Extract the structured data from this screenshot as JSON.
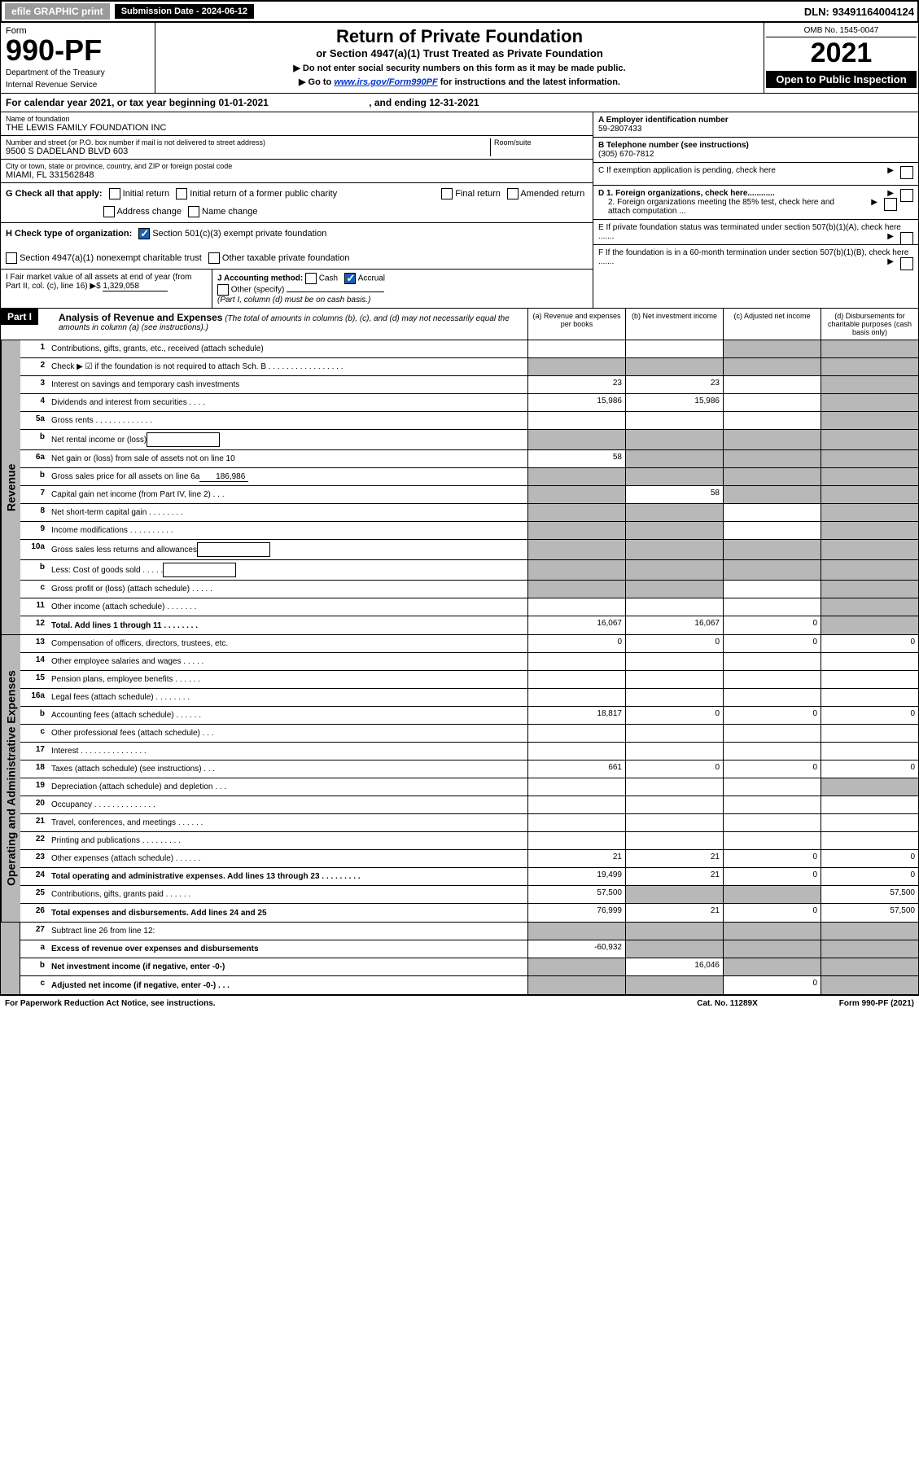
{
  "top": {
    "efile": "efile GRAPHIC print",
    "sub_label": "Submission Date - 2024-06-12",
    "dln": "DLN: 93491164004124"
  },
  "header": {
    "form_word": "Form",
    "form_num": "990-PF",
    "dept1": "Department of the Treasury",
    "dept2": "Internal Revenue Service",
    "title": "Return of Private Foundation",
    "subtitle": "or Section 4947(a)(1) Trust Treated as Private Foundation",
    "note1": "▶ Do not enter social security numbers on this form as it may be made public.",
    "note2_pre": "▶ Go to ",
    "note2_link": "www.irs.gov/Form990PF",
    "note2_post": " for instructions and the latest information.",
    "omb": "OMB No. 1545-0047",
    "year": "2021",
    "open": "Open to Public Inspection"
  },
  "cal": {
    "text_pre": "For calendar year 2021, or tax year beginning ",
    "begin": "01-01-2021",
    "text_mid": " , and ending ",
    "end": "12-31-2021"
  },
  "info": {
    "name_label": "Name of foundation",
    "name": "THE LEWIS FAMILY FOUNDATION INC",
    "addr_label": "Number and street (or P.O. box number if mail is not delivered to street address)",
    "addr": "9500 S DADELAND BLVD 603",
    "room_label": "Room/suite",
    "city_label": "City or town, state or province, country, and ZIP or foreign postal code",
    "city": "MIAMI, FL  331562848",
    "A_label": "A Employer identification number",
    "A_val": "59-2807433",
    "B_label": "B Telephone number (see instructions)",
    "B_val": "(305) 670-7812",
    "C_label": "C If exemption application is pending, check here",
    "D1_label": "D 1. Foreign organizations, check here............",
    "D2_label": "2. Foreign organizations meeting the 85% test, check here and attach computation ...",
    "E_label": "E If private foundation status was terminated under section 507(b)(1)(A), check here .......",
    "F_label": "F If the foundation is in a 60-month termination under section 507(b)(1)(B), check here .......",
    "G_label": "G Check all that apply:",
    "G_opts": [
      "Initial return",
      "Initial return of a former public charity",
      "Final return",
      "Amended return",
      "Address change",
      "Name change"
    ],
    "H_label": "H Check type of organization:",
    "H1": "Section 501(c)(3) exempt private foundation",
    "H2": "Section 4947(a)(1) nonexempt charitable trust",
    "H3": "Other taxable private foundation",
    "I_label": "I Fair market value of all assets at end of year (from Part II, col. (c), line 16)",
    "I_val": "1,329,058",
    "J_label": "J Accounting method:",
    "J_cash": "Cash",
    "J_accrual": "Accrual",
    "J_other": "Other (specify)",
    "J_note": "(Part I, column (d) must be on cash basis.)"
  },
  "part1": {
    "label": "Part I",
    "title": "Analysis of Revenue and Expenses",
    "title_note": "(The total of amounts in columns (b), (c), and (d) may not necessarily equal the amounts in column (a) (see instructions).)",
    "col_a": "(a)   Revenue and expenses per books",
    "col_b": "(b)   Net investment income",
    "col_c": "(c)   Adjusted net income",
    "col_d": "(d)   Disbursements for charitable purposes (cash basis only)"
  },
  "side_labels": {
    "revenue": "Revenue",
    "expenses": "Operating and Administrative Expenses"
  },
  "rows": [
    {
      "n": "1",
      "d": "Contributions, gifts, grants, etc., received (attach schedule)",
      "a": "",
      "b": "",
      "c": "s",
      "da": "s"
    },
    {
      "n": "2",
      "d": "Check ▶ ☑ if the foundation is not required to attach Sch. B  . . . . . . . . . . . . . . . . .",
      "a": "s",
      "b": "s",
      "c": "s",
      "da": "s"
    },
    {
      "n": "3",
      "d": "Interest on savings and temporary cash investments",
      "a": "23",
      "b": "23",
      "c": "",
      "da": "s"
    },
    {
      "n": "4",
      "d": "Dividends and interest from securities  . . . .",
      "a": "15,986",
      "b": "15,986",
      "c": "",
      "da": "s"
    },
    {
      "n": "5a",
      "d": "Gross rents  . . . . . . . . . . . . .",
      "a": "",
      "b": "",
      "c": "",
      "da": "s"
    },
    {
      "n": "b",
      "d": "Net rental income or (loss)",
      "a": "s",
      "b": "s",
      "c": "s",
      "da": "s",
      "box": true
    },
    {
      "n": "6a",
      "d": "Net gain or (loss) from sale of assets not on line 10",
      "a": "58",
      "b": "s",
      "c": "s",
      "da": "s"
    },
    {
      "n": "b",
      "d": "Gross sales price for all assets on line 6a",
      "a": "s",
      "b": "s",
      "c": "s",
      "da": "s",
      "inline": "186,986"
    },
    {
      "n": "7",
      "d": "Capital gain net income (from Part IV, line 2)  . . .",
      "a": "s",
      "b": "58",
      "c": "s",
      "da": "s"
    },
    {
      "n": "8",
      "d": "Net short-term capital gain  . . . . . . . .",
      "a": "s",
      "b": "s",
      "c": "",
      "da": "s"
    },
    {
      "n": "9",
      "d": "Income modifications  . . . . . . . . . .",
      "a": "s",
      "b": "s",
      "c": "",
      "da": "s"
    },
    {
      "n": "10a",
      "d": "Gross sales less returns and allowances",
      "a": "s",
      "b": "s",
      "c": "s",
      "da": "s",
      "box": true
    },
    {
      "n": "b",
      "d": "Less: Cost of goods sold  . . . . .",
      "a": "s",
      "b": "s",
      "c": "s",
      "da": "s",
      "box": true
    },
    {
      "n": "c",
      "d": "Gross profit or (loss) (attach schedule)  . . . . .",
      "a": "s",
      "b": "s",
      "c": "",
      "da": "s"
    },
    {
      "n": "11",
      "d": "Other income (attach schedule)  . . . . . . .",
      "a": "",
      "b": "",
      "c": "",
      "da": "s"
    },
    {
      "n": "12",
      "d": "Total. Add lines 1 through 11  . . . . . . . .",
      "a": "16,067",
      "b": "16,067",
      "c": "0",
      "da": "s",
      "bold": true
    }
  ],
  "exp_rows": [
    {
      "n": "13",
      "d": "Compensation of officers, directors, trustees, etc.",
      "a": "0",
      "b": "0",
      "c": "0",
      "da": "0"
    },
    {
      "n": "14",
      "d": "Other employee salaries and wages  . . . . .",
      "a": "",
      "b": "",
      "c": "",
      "da": ""
    },
    {
      "n": "15",
      "d": "Pension plans, employee benefits  . . . . . .",
      "a": "",
      "b": "",
      "c": "",
      "da": ""
    },
    {
      "n": "16a",
      "d": "Legal fees (attach schedule)  . . . . . . . .",
      "a": "",
      "b": "",
      "c": "",
      "da": ""
    },
    {
      "n": "b",
      "d": "Accounting fees (attach schedule)  . . . . . .",
      "a": "18,817",
      "b": "0",
      "c": "0",
      "da": "0"
    },
    {
      "n": "c",
      "d": "Other professional fees (attach schedule)  . . .",
      "a": "",
      "b": "",
      "c": "",
      "da": ""
    },
    {
      "n": "17",
      "d": "Interest  . . . . . . . . . . . . . . .",
      "a": "",
      "b": "",
      "c": "",
      "da": ""
    },
    {
      "n": "18",
      "d": "Taxes (attach schedule) (see instructions)  . . .",
      "a": "661",
      "b": "0",
      "c": "0",
      "da": "0"
    },
    {
      "n": "19",
      "d": "Depreciation (attach schedule) and depletion  . . .",
      "a": "",
      "b": "",
      "c": "",
      "da": "s"
    },
    {
      "n": "20",
      "d": "Occupancy  . . . . . . . . . . . . . .",
      "a": "",
      "b": "",
      "c": "",
      "da": ""
    },
    {
      "n": "21",
      "d": "Travel, conferences, and meetings  . . . . . .",
      "a": "",
      "b": "",
      "c": "",
      "da": ""
    },
    {
      "n": "22",
      "d": "Printing and publications  . . . . . . . . .",
      "a": "",
      "b": "",
      "c": "",
      "da": ""
    },
    {
      "n": "23",
      "d": "Other expenses (attach schedule)  . . . . . .",
      "a": "21",
      "b": "21",
      "c": "0",
      "da": "0"
    },
    {
      "n": "24",
      "d": "Total operating and administrative expenses. Add lines 13 through 23  . . . . . . . . .",
      "a": "19,499",
      "b": "21",
      "c": "0",
      "da": "0",
      "bold": true
    },
    {
      "n": "25",
      "d": "Contributions, gifts, grants paid  . . . . . .",
      "a": "57,500",
      "b": "s",
      "c": "s",
      "da": "57,500"
    },
    {
      "n": "26",
      "d": "Total expenses and disbursements. Add lines 24 and 25",
      "a": "76,999",
      "b": "21",
      "c": "0",
      "da": "57,500",
      "bold": true
    }
  ],
  "bottom_rows": [
    {
      "n": "27",
      "d": "Subtract line 26 from line 12:",
      "a": "s",
      "b": "s",
      "c": "s",
      "da": "s"
    },
    {
      "n": "a",
      "d": "Excess of revenue over expenses and disbursements",
      "a": "-60,932",
      "b": "s",
      "c": "s",
      "da": "s",
      "bold": true
    },
    {
      "n": "b",
      "d": "Net investment income (if negative, enter -0-)",
      "a": "s",
      "b": "16,046",
      "c": "s",
      "da": "s",
      "bold": true
    },
    {
      "n": "c",
      "d": "Adjusted net income (if negative, enter -0-)  . . .",
      "a": "s",
      "b": "s",
      "c": "0",
      "da": "s",
      "bold": true
    }
  ],
  "footer": {
    "left": "For Paperwork Reduction Act Notice, see instructions.",
    "mid": "Cat. No. 11289X",
    "right": "Form 990-PF (2021)"
  },
  "colors": {
    "shade": "#b8b8b8",
    "link": "#0033cc"
  }
}
